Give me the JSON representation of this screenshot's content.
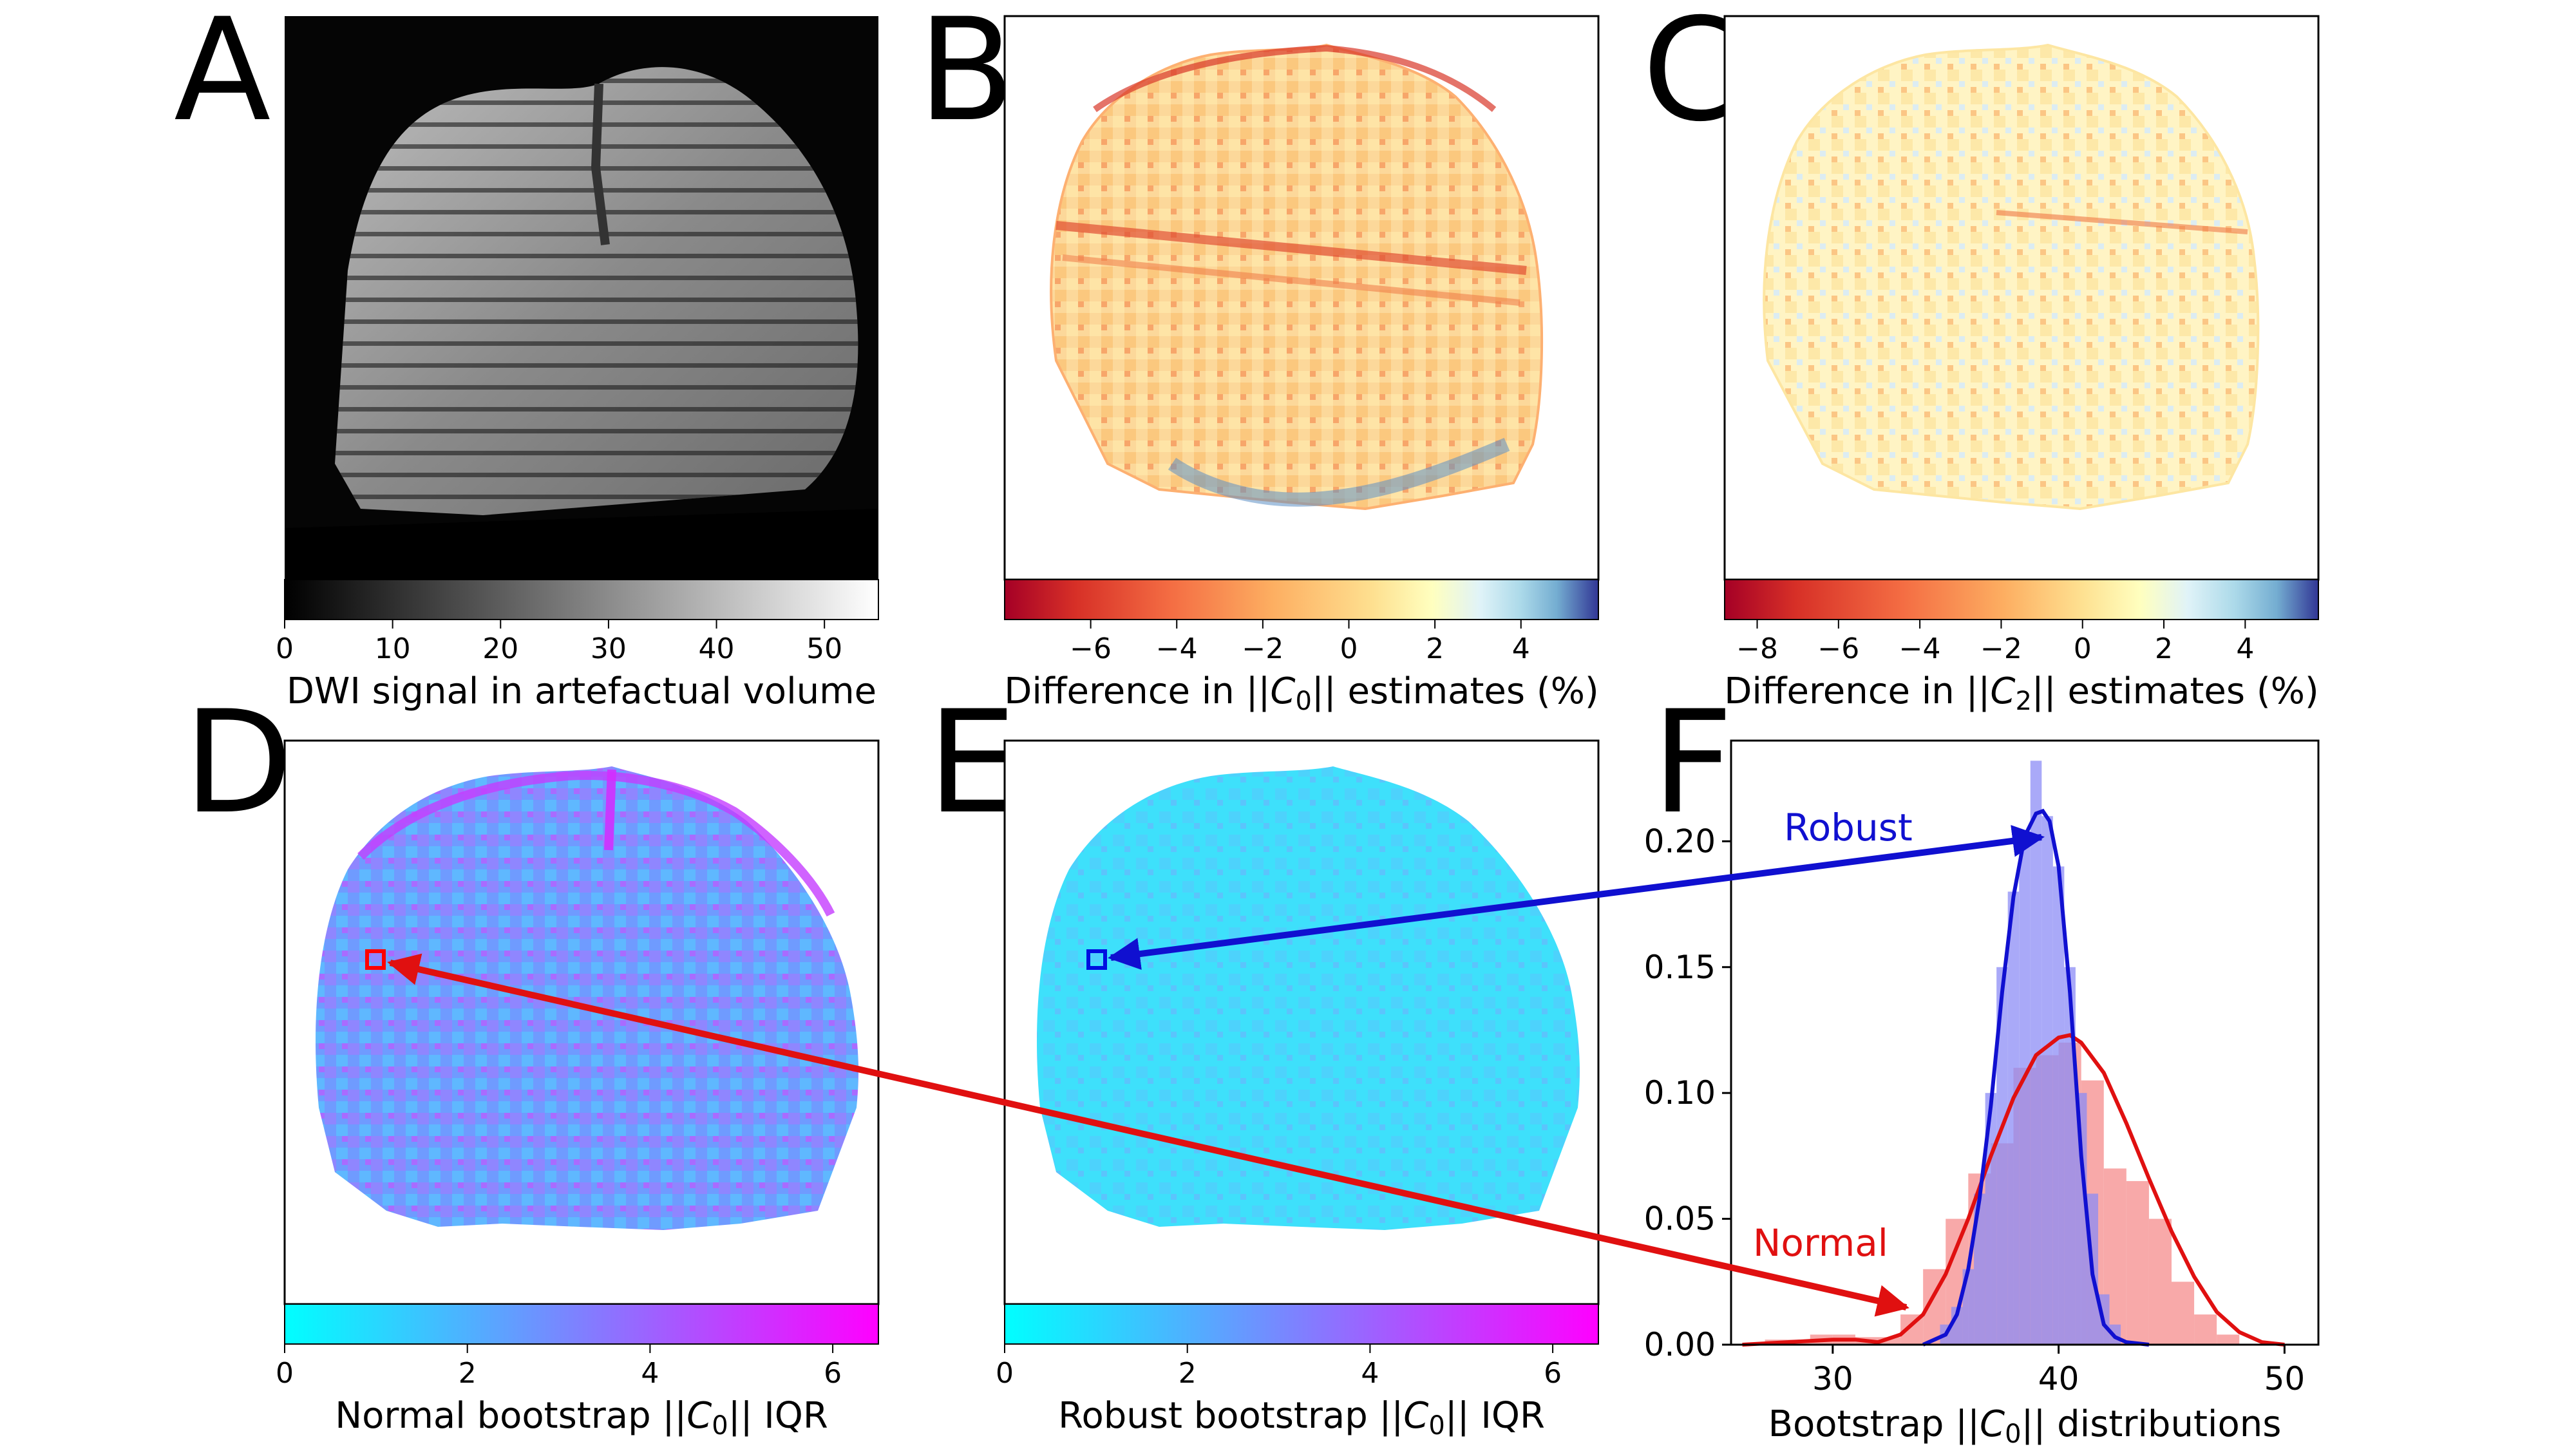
{
  "panels": {
    "A": {
      "letter": "A",
      "colorbar_label": "DWI signal in artefactual volume",
      "ticks": [
        "0",
        "10",
        "20",
        "30",
        "40",
        "50"
      ]
    },
    "B": {
      "letter": "B",
      "colorbar_label_pre": "Difference in ||",
      "colorbar_label_sym": "C",
      "colorbar_label_sub": "0",
      "colorbar_label_post": "|| estimates (%)",
      "ticks": [
        "−6",
        "−4",
        "−2",
        "0",
        "2",
        "4"
      ]
    },
    "C": {
      "letter": "C",
      "colorbar_label_pre": "Difference in ||",
      "colorbar_label_sym": "C",
      "colorbar_label_sub": "2",
      "colorbar_label_post": "|| estimates (%)",
      "ticks": [
        "−8",
        "−6",
        "−4",
        "−2",
        "0",
        "2",
        "4"
      ]
    },
    "D": {
      "letter": "D",
      "colorbar_label_pre": "Normal bootstrap ||",
      "colorbar_label_sym": "C",
      "colorbar_label_sub": "0",
      "colorbar_label_post": "|| IQR",
      "ticks": [
        "0",
        "2",
        "4",
        "6"
      ]
    },
    "E": {
      "letter": "E",
      "colorbar_label_pre": "Robust bootstrap ||",
      "colorbar_label_sym": "C",
      "colorbar_label_sub": "0",
      "colorbar_label_post": "|| IQR",
      "ticks": [
        "0",
        "2",
        "4",
        "6"
      ]
    },
    "F": {
      "letter": "F",
      "xlabel_pre": "Bootstrap ||",
      "xlabel_sym": "C",
      "xlabel_sub": "0",
      "xlabel_post": "|| distributions"
    }
  },
  "annotations": {
    "robust": "Robust",
    "normal": "Normal"
  },
  "colors": {
    "robust": "#1010d0",
    "normal": "#e01010",
    "robust_fill": "#8c8cf5",
    "normal_fill": "#f58c8c"
  },
  "chart_data": {
    "type": "histogram",
    "title": "",
    "xlabel": "Bootstrap ||C0|| distributions",
    "ylabel": "",
    "xlim": [
      25.5,
      51.5
    ],
    "ylim": [
      0,
      0.24
    ],
    "xticks": [
      30,
      40,
      50
    ],
    "yticks": [
      0.0,
      0.05,
      0.1,
      0.15,
      0.2
    ],
    "ytick_labels": [
      "0.00",
      "0.05",
      "0.10",
      "0.15",
      "0.20"
    ],
    "series": [
      {
        "name": "Normal",
        "bins": [
          27.5,
          28.5,
          29.5,
          30.5,
          31.5,
          32.5,
          33.5,
          34.5,
          35.5,
          36.5,
          37.5,
          38.5,
          39.5,
          40.5,
          41.5,
          42.5,
          43.5,
          44.5,
          45.5,
          46.5,
          47.5
        ],
        "values": [
          0.002,
          0.002,
          0.004,
          0.004,
          0.003,
          0.003,
          0.012,
          0.03,
          0.05,
          0.068,
          0.08,
          0.11,
          0.115,
          0.12,
          0.105,
          0.07,
          0.065,
          0.05,
          0.025,
          0.012,
          0.004
        ],
        "kde_x": [
          26,
          28,
          30,
          31,
          32,
          33,
          34,
          35,
          36,
          37,
          38,
          39,
          40,
          40.5,
          41,
          42,
          43,
          44,
          45,
          46,
          47,
          48,
          49,
          50
        ],
        "kde_y": [
          0.0,
          0.001,
          0.002,
          0.002,
          0.001,
          0.004,
          0.012,
          0.028,
          0.05,
          0.075,
          0.098,
          0.115,
          0.122,
          0.123,
          0.12,
          0.108,
          0.088,
          0.066,
          0.045,
          0.027,
          0.013,
          0.005,
          0.001,
          0.0
        ]
      },
      {
        "name": "Robust",
        "bins": [
          35.0,
          35.5,
          36.0,
          36.5,
          37.0,
          37.5,
          38.0,
          38.5,
          39.0,
          39.5,
          40.0,
          40.5,
          41.0,
          41.5,
          42.0,
          42.5
        ],
        "values": [
          0.008,
          0.015,
          0.03,
          0.06,
          0.1,
          0.15,
          0.18,
          0.2,
          0.232,
          0.21,
          0.19,
          0.15,
          0.1,
          0.06,
          0.02,
          0.008
        ],
        "kde_x": [
          34,
          35,
          35.5,
          36,
          36.5,
          37,
          37.5,
          38,
          38.5,
          39,
          39.3,
          39.6,
          40,
          40.5,
          41,
          41.5,
          42,
          42.5,
          43,
          44
        ],
        "kde_y": [
          0.0,
          0.004,
          0.012,
          0.03,
          0.058,
          0.095,
          0.14,
          0.178,
          0.202,
          0.211,
          0.212,
          0.208,
          0.19,
          0.14,
          0.075,
          0.028,
          0.008,
          0.003,
          0.001,
          0.0
        ]
      }
    ]
  }
}
